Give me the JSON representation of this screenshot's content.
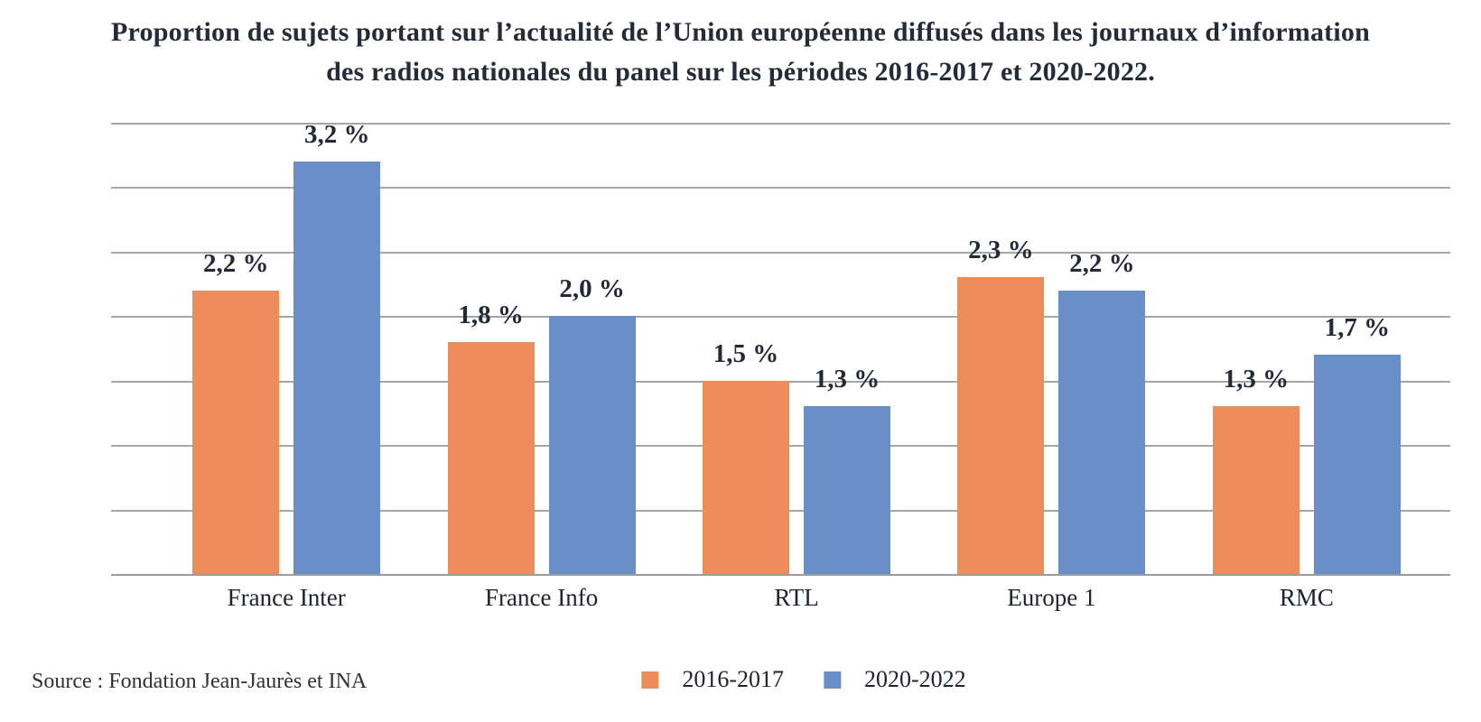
{
  "title": {
    "lines": [
      "Proportion de sujets portant sur l’actualité de l’Union européenne diffusés dans les journaux d’information",
      "des radios nationales du panel sur les périodes 2016-2017 et 2020-2022."
    ]
  },
  "source": "Source : Fondation Jean-Jaurès et INA",
  "chart_data": {
    "type": "bar",
    "title": "Proportion de sujets portant sur l’actualité de l’Union européenne diffusés dans les journaux d’information des radios nationales du panel sur les périodes 2016-2017 et 2020-2022.",
    "categories": [
      "France Inter",
      "France Info",
      "RTL",
      "Europe 1",
      "RMC"
    ],
    "series": [
      {
        "name": "2016-2017",
        "color": "#ED8D5B",
        "values": [
          2.2,
          1.8,
          1.5,
          2.3,
          1.3
        ],
        "labels": [
          "2,2 %",
          "1,8 %",
          "1,5 %",
          "2,3 %",
          "1,3 %"
        ]
      },
      {
        "name": "2020-2022",
        "color": "#6A8EC8",
        "values": [
          3.2,
          2.0,
          1.3,
          2.2,
          1.7
        ],
        "labels": [
          "3,2 %",
          "2,0 %",
          "1,3 %",
          "2,2 %",
          "1,7 %"
        ]
      }
    ],
    "xlabel": "",
    "ylabel": "",
    "ylim": [
      0,
      3.5
    ],
    "gridline_step": 0.5,
    "grid": true,
    "y_axis_labels_visible": false,
    "gridline_color": "#A6A6A6",
    "axis_line_color": "#9C9C9C",
    "legend_position": "bottom",
    "source": "Source : Fondation Jean-Jaurès et INA"
  }
}
